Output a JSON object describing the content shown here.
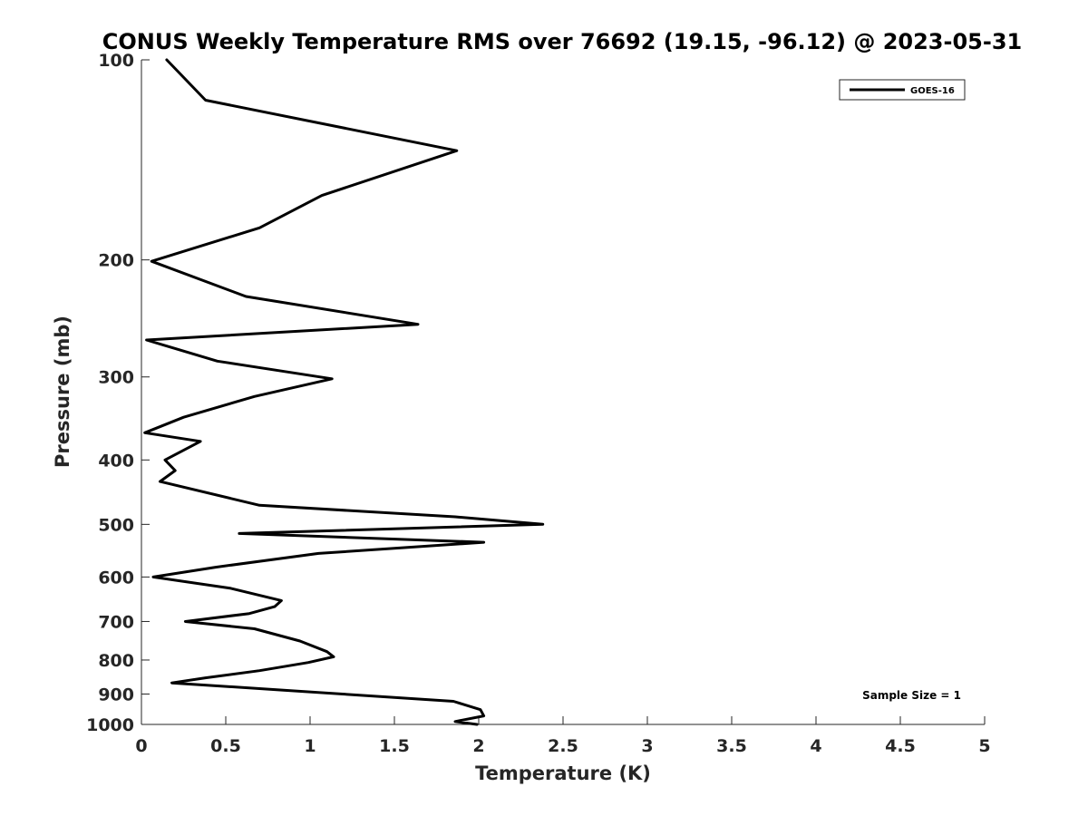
{
  "chart_data": {
    "type": "line",
    "title": "CONUS Weekly Temperature RMS over 76692 (19.15, -96.12) @ 2023-05-31",
    "xlabel": "Temperature (K)",
    "ylabel": "Pressure (mb)",
    "xlim": [
      0,
      5
    ],
    "ylim": [
      1000,
      100
    ],
    "yscale": "log",
    "y_reversed": true,
    "x_ticks": [
      0,
      0.5,
      1,
      1.5,
      2,
      2.5,
      3,
      3.5,
      4,
      4.5,
      5
    ],
    "x_tick_labels": [
      "0",
      "0.5",
      "1",
      "1.5",
      "2",
      "2.5",
      "3",
      "3.5",
      "4",
      "4.5",
      "5"
    ],
    "y_ticks": [
      100,
      200,
      300,
      400,
      500,
      600,
      700,
      800,
      900,
      1000
    ],
    "y_tick_labels": [
      "100",
      "200",
      "300",
      "400",
      "500",
      "600",
      "700",
      "800",
      "900",
      "1000"
    ],
    "grid": false,
    "legend_position": "top-right",
    "annotation": "Sample Size = 1",
    "series": [
      {
        "name": "GOES-16",
        "color": "#000000",
        "x": [
          0.15,
          0.38,
          1.87,
          1.07,
          0.7,
          0.06,
          0.62,
          1.64,
          0.03,
          0.45,
          1.13,
          0.67,
          0.25,
          0.02,
          0.35,
          0.14,
          0.2,
          0.11,
          0.7,
          1.86,
          2.38,
          0.58,
          2.03,
          1.05,
          0.44,
          0.07,
          0.53,
          0.83,
          0.79,
          0.64,
          0.26,
          0.67,
          0.94,
          1.1,
          1.14,
          0.99,
          0.7,
          0.38,
          0.18,
          1.85,
          2.01,
          2.03,
          1.86,
          1.99
        ],
        "y": [
          100,
          115,
          137,
          160,
          179,
          201,
          227,
          250,
          264,
          284,
          302,
          321,
          345,
          364,
          375,
          400,
          415,
          431,
          468,
          487,
          500,
          516,
          532,
          553,
          580,
          600,
          624,
          651,
          665,
          681,
          700,
          718,
          749,
          777,
          791,
          807,
          830,
          851,
          866,
          923,
          950,
          971,
          990,
          1000
        ]
      }
    ]
  }
}
